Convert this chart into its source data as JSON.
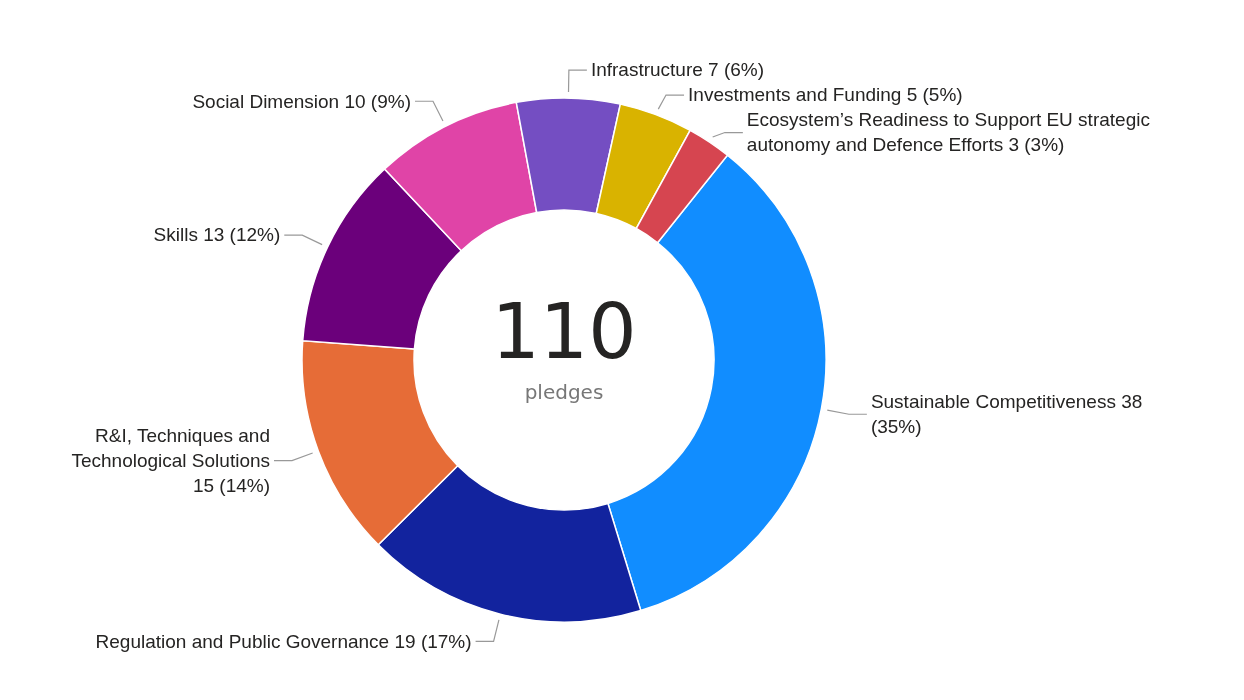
{
  "chart_data": {
    "type": "donut",
    "categories": [
      "Sustainable Competitiveness",
      "Regulation and Public Governance",
      "R&I, Techniques and Technological Solutions",
      "Skills",
      "Social Dimension",
      "Infrastructure",
      "Investments and Funding",
      "Ecosystem’s Readiness to Support EU strategic autonomy and Defence Efforts"
    ],
    "values": [
      38,
      19,
      15,
      13,
      10,
      7,
      5,
      3
    ],
    "value_labels": [
      "38 (35%)",
      "19 (17%)",
      "15 (14%)",
      "13 (12%)",
      "10 (9%)",
      "7 (6%)",
      "5 (5%)",
      "3 (3%)"
    ],
    "colors": [
      "#118dff",
      "#12239e",
      "#e66c37",
      "#6b007b",
      "#e044a7",
      "#744ec2",
      "#d9b300",
      "#d64550"
    ],
    "annotations": [
      "110",
      "pledges"
    ],
    "legend": false
  }
}
